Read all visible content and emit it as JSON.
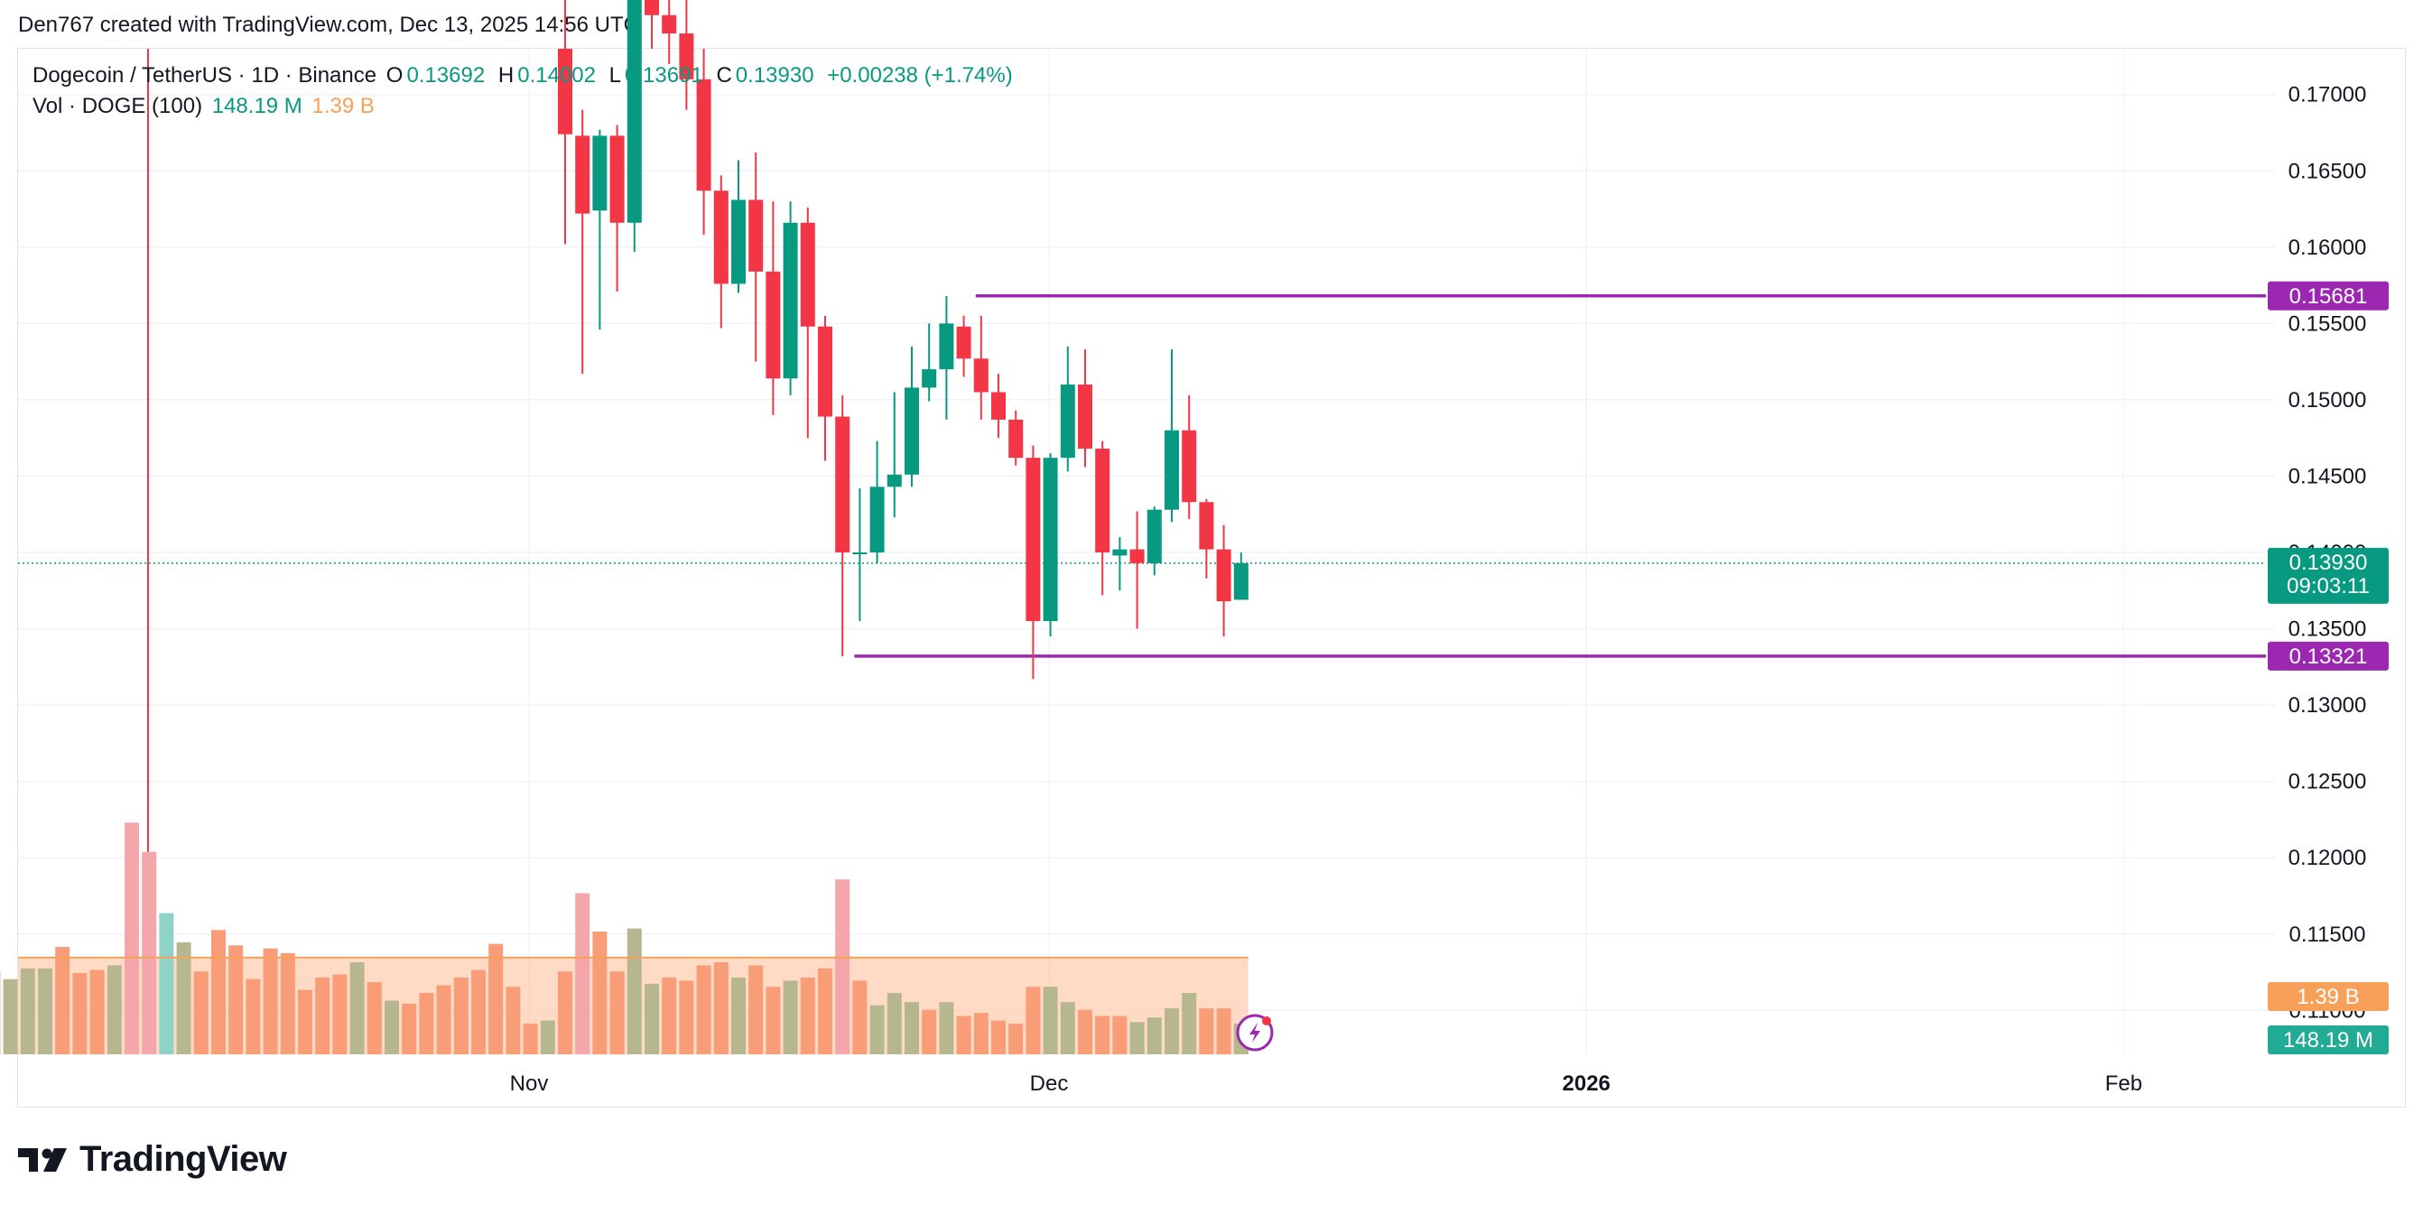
{
  "header": {
    "created_by": "Den767 created with TradingView.com, Dec 13, 2025 14:56 UTC"
  },
  "legend": {
    "symbol": "Dogecoin / TetherUS · 1D · Binance",
    "o_label": "O",
    "o_value": "0.13692",
    "h_label": "H",
    "h_value": "0.14002",
    "l_label": "L",
    "l_value": "0.13691",
    "c_label": "C",
    "c_value": "0.13930",
    "change": "+0.00238 (+1.74%)",
    "vol_label": "Vol · DOGE (100)",
    "vol_value": "148.19 M",
    "vol_ma_value": "1.39 B"
  },
  "colors": {
    "up": "#089981",
    "down": "#f23645",
    "level": "#9c27b0",
    "vol_up": "#b6b68f",
    "vol_down": "#f99c78",
    "vol_ma": "#f7a05a",
    "vol_ma_fill": "#ffcdb2",
    "grid": "#f0f3fa"
  },
  "brand": {
    "name": "TradingView"
  },
  "chart_data": {
    "type": "candlestick",
    "y_axis": {
      "range": [
        0.10712,
        0.173
      ],
      "ticks": [
        "0.17000",
        "0.16500",
        "0.16000",
        "0.15500",
        "0.15000",
        "0.14500",
        "0.14000",
        "0.13500",
        "0.13000",
        "0.12500",
        "0.12000",
        "0.11500",
        "0.11000"
      ]
    },
    "x_axis": {
      "ticks": [
        {
          "label": "Nov",
          "index": 0,
          "bold": false
        },
        {
          "label": "Dec",
          "index": 30,
          "bold": false
        },
        {
          "label": "2026",
          "index": 61,
          "bold": true
        },
        {
          "label": "Feb",
          "index": 92,
          "bold": false
        }
      ],
      "first_date": "2025-11-01",
      "last_date": "2025-12-13"
    },
    "levels": [
      {
        "value": 0.15681,
        "label": "0.15681",
        "from_index": 24
      },
      {
        "value": 0.13321,
        "label": "0.13321",
        "from_index": 17
      }
    ],
    "last_price": {
      "value": 0.1393,
      "label": "0.13930",
      "countdown": "09:03:11"
    },
    "volume_labels": {
      "ma": "1.39 B",
      "volume": "148.19 M"
    },
    "candles": [
      {
        "o": 0.173,
        "h": 0.1765,
        "l": 0.1602,
        "c": 0.1674
      },
      {
        "o": 0.1673,
        "h": 0.169,
        "l": 0.1517,
        "c": 0.1622
      },
      {
        "o": 0.1624,
        "h": 0.1677,
        "l": 0.1546,
        "c": 0.1673
      },
      {
        "o": 0.1673,
        "h": 0.168,
        "l": 0.1571,
        "c": 0.1616
      },
      {
        "o": 0.1616,
        "h": 0.179,
        "l": 0.1597,
        "c": 0.177
      },
      {
        "o": 0.177,
        "h": 0.181,
        "l": 0.173,
        "c": 0.1752
      },
      {
        "o": 0.1752,
        "h": 0.18,
        "l": 0.172,
        "c": 0.174
      },
      {
        "o": 0.174,
        "h": 0.178,
        "l": 0.169,
        "c": 0.171
      },
      {
        "o": 0.171,
        "h": 0.173,
        "l": 0.1608,
        "c": 0.1637
      },
      {
        "o": 0.1637,
        "h": 0.1647,
        "l": 0.1547,
        "c": 0.1576
      },
      {
        "o": 0.1576,
        "h": 0.1657,
        "l": 0.157,
        "c": 0.1631
      },
      {
        "o": 0.1631,
        "h": 0.1662,
        "l": 0.1525,
        "c": 0.1584
      },
      {
        "o": 0.1584,
        "h": 0.163,
        "l": 0.149,
        "c": 0.1514
      },
      {
        "o": 0.1514,
        "h": 0.163,
        "l": 0.1503,
        "c": 0.1616
      },
      {
        "o": 0.1616,
        "h": 0.1626,
        "l": 0.1475,
        "c": 0.1548
      },
      {
        "o": 0.1548,
        "h": 0.1555,
        "l": 0.146,
        "c": 0.1489
      },
      {
        "o": 0.1489,
        "h": 0.1503,
        "l": 0.1332,
        "c": 0.14
      },
      {
        "o": 0.14,
        "h": 0.1442,
        "l": 0.1355,
        "c": 0.14
      },
      {
        "o": 0.14,
        "h": 0.1473,
        "l": 0.1393,
        "c": 0.1443
      },
      {
        "o": 0.1443,
        "h": 0.1505,
        "l": 0.1423,
        "c": 0.1451
      },
      {
        "o": 0.1451,
        "h": 0.1535,
        "l": 0.1443,
        "c": 0.1508
      },
      {
        "o": 0.1508,
        "h": 0.155,
        "l": 0.1499,
        "c": 0.152
      },
      {
        "o": 0.152,
        "h": 0.1568,
        "l": 0.1487,
        "c": 0.155
      },
      {
        "o": 0.1548,
        "h": 0.1555,
        "l": 0.1515,
        "c": 0.1527
      },
      {
        "o": 0.1527,
        "h": 0.1555,
        "l": 0.1487,
        "c": 0.1505
      },
      {
        "o": 0.1505,
        "h": 0.1517,
        "l": 0.1475,
        "c": 0.1487
      },
      {
        "o": 0.1487,
        "h": 0.1493,
        "l": 0.1457,
        "c": 0.1462
      },
      {
        "o": 0.1462,
        "h": 0.147,
        "l": 0.1317,
        "c": 0.1355
      },
      {
        "o": 0.1355,
        "h": 0.1465,
        "l": 0.1345,
        "c": 0.1462
      },
      {
        "o": 0.1462,
        "h": 0.1535,
        "l": 0.1453,
        "c": 0.151
      },
      {
        "o": 0.151,
        "h": 0.1533,
        "l": 0.1456,
        "c": 0.1468
      },
      {
        "o": 0.1468,
        "h": 0.1473,
        "l": 0.1372,
        "c": 0.14
      },
      {
        "o": 0.1398,
        "h": 0.141,
        "l": 0.1375,
        "c": 0.1402
      },
      {
        "o": 0.1402,
        "h": 0.1427,
        "l": 0.135,
        "c": 0.1393
      },
      {
        "o": 0.1393,
        "h": 0.143,
        "l": 0.1385,
        "c": 0.1428
      },
      {
        "o": 0.1428,
        "h": 0.1533,
        "l": 0.142,
        "c": 0.148
      },
      {
        "o": 0.148,
        "h": 0.1503,
        "l": 0.1422,
        "c": 0.1433
      },
      {
        "o": 0.1433,
        "h": 0.1435,
        "l": 0.1383,
        "c": 0.1402
      },
      {
        "o": 0.1402,
        "h": 0.1418,
        "l": 0.1345,
        "c": 0.1368
      },
      {
        "o": 0.1369,
        "h": 0.14,
        "l": 0.1369,
        "c": 0.1393
      }
    ],
    "volumes": [
      {
        "v": 0.54,
        "up": false
      },
      {
        "v": 1.05,
        "up": false
      },
      {
        "v": 0.8,
        "up": false
      },
      {
        "v": 0.54,
        "up": false
      },
      {
        "v": 0.82,
        "up": true
      },
      {
        "v": 0.46,
        "up": true
      },
      {
        "v": 0.5,
        "up": false
      },
      {
        "v": 0.48,
        "up": false
      },
      {
        "v": 0.58,
        "up": false
      },
      {
        "v": 0.6,
        "up": false
      },
      {
        "v": 0.5,
        "up": true
      },
      {
        "v": 0.58,
        "up": false
      },
      {
        "v": 0.44,
        "up": false
      },
      {
        "v": 0.48,
        "up": true
      },
      {
        "v": 0.5,
        "up": false
      },
      {
        "v": 0.56,
        "up": false
      },
      {
        "v": 1.14,
        "up": false
      },
      {
        "v": 0.48,
        "up": false
      },
      {
        "v": 0.32,
        "up": true
      },
      {
        "v": 0.4,
        "up": true
      },
      {
        "v": 0.34,
        "up": true
      },
      {
        "v": 0.29,
        "up": false
      },
      {
        "v": 0.34,
        "up": true
      },
      {
        "v": 0.25,
        "up": false
      },
      {
        "v": 0.27,
        "up": false
      },
      {
        "v": 0.22,
        "up": false
      },
      {
        "v": 0.2,
        "up": false
      },
      {
        "v": 0.44,
        "up": false
      },
      {
        "v": 0.44,
        "up": true
      },
      {
        "v": 0.34,
        "up": true
      },
      {
        "v": 0.29,
        "up": false
      },
      {
        "v": 0.25,
        "up": false
      },
      {
        "v": 0.25,
        "up": false
      },
      {
        "v": 0.21,
        "up": true
      },
      {
        "v": 0.24,
        "up": true
      },
      {
        "v": 0.3,
        "up": true
      },
      {
        "v": 0.4,
        "up": true
      },
      {
        "v": 0.3,
        "up": false
      },
      {
        "v": 0.3,
        "up": false
      },
      {
        "v": 0.2,
        "up": true
      }
    ],
    "pre_volumes": [
      {
        "v": 0.54,
        "up": false
      },
      {
        "v": 0.49,
        "up": true
      },
      {
        "v": 0.56,
        "up": true
      },
      {
        "v": 0.56,
        "up": true
      },
      {
        "v": 0.7,
        "up": false
      },
      {
        "v": 0.53,
        "up": false
      },
      {
        "v": 0.55,
        "up": false
      },
      {
        "v": 0.58,
        "up": true
      },
      {
        "v": 1.51,
        "up": false
      },
      {
        "v": 1.32,
        "up": false
      },
      {
        "v": 0.92,
        "up": true
      },
      {
        "v": 0.73,
        "up": true
      },
      {
        "v": 0.54,
        "up": false
      },
      {
        "v": 0.81,
        "up": false
      },
      {
        "v": 0.71,
        "up": false
      },
      {
        "v": 0.49,
        "up": false
      },
      {
        "v": 0.69,
        "up": false
      },
      {
        "v": 0.66,
        "up": false
      },
      {
        "v": 0.42,
        "up": false
      },
      {
        "v": 0.5,
        "up": false
      },
      {
        "v": 0.52,
        "up": false
      },
      {
        "v": 0.6,
        "up": true
      },
      {
        "v": 0.47,
        "up": false
      },
      {
        "v": 0.35,
        "up": true
      },
      {
        "v": 0.33,
        "up": false
      },
      {
        "v": 0.4,
        "up": false
      },
      {
        "v": 0.45,
        "up": false
      },
      {
        "v": 0.5,
        "up": false
      },
      {
        "v": 0.55,
        "up": false
      },
      {
        "v": 0.72,
        "up": false
      },
      {
        "v": 0.44,
        "up": false
      },
      {
        "v": 0.2,
        "up": false
      },
      {
        "v": 0.22,
        "up": true
      }
    ],
    "vol_ma": 0.63
  }
}
